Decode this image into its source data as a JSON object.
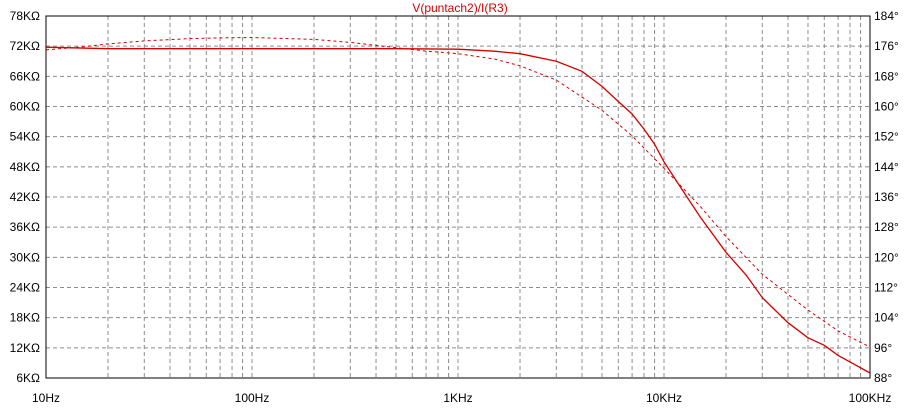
{
  "chart_data": {
    "type": "line",
    "title": "V(puntach2)/I(R3)",
    "xscale": "log",
    "xlim": [
      10,
      100000
    ],
    "x_tick_values": [
      10,
      100,
      1000,
      10000,
      100000
    ],
    "x_tick_labels": [
      "10Hz",
      "100Hz",
      "1KHz",
      "10KHz",
      "100KHz"
    ],
    "y_left": {
      "lim": [
        6,
        78
      ],
      "tick_values": [
        6,
        12,
        18,
        24,
        30,
        36,
        42,
        48,
        54,
        60,
        66,
        72,
        78
      ],
      "tick_labels": [
        "6KΩ",
        "12KΩ",
        "18KΩ",
        "24KΩ",
        "30KΩ",
        "36KΩ",
        "42KΩ",
        "48KΩ",
        "54KΩ",
        "60KΩ",
        "66KΩ",
        "72KΩ",
        "78KΩ"
      ]
    },
    "y_right": {
      "lim": [
        88,
        184
      ],
      "tick_values": [
        88,
        96,
        104,
        112,
        120,
        128,
        136,
        144,
        152,
        160,
        168,
        176,
        184
      ],
      "tick_labels": [
        "88°",
        "96°",
        "104°",
        "112°",
        "120°",
        "128°",
        "136°",
        "144°",
        "152°",
        "160°",
        "168°",
        "176°",
        "184°"
      ]
    },
    "grid": true,
    "color": "#d40000",
    "series": [
      {
        "axis": "left",
        "style": "solid",
        "x": [
          10,
          20,
          50,
          100,
          200,
          500,
          1000,
          1500,
          2000,
          3000,
          4000,
          5000,
          6000,
          7000,
          8000,
          9000,
          10000,
          12000,
          15000,
          20000,
          25000,
          30000,
          40000,
          50000,
          60000,
          70000,
          80000,
          100000
        ],
        "y": [
          71.8,
          71.5,
          71.5,
          71.5,
          71.5,
          71.5,
          71.4,
          71.0,
          70.5,
          69.0,
          67.0,
          64.0,
          61.0,
          58.5,
          55.5,
          52.5,
          49.0,
          44.0,
          38.0,
          31.0,
          26.5,
          22.0,
          17.0,
          14.0,
          12.5,
          10.5,
          9.2,
          7.0
        ]
      },
      {
        "axis": "right",
        "style": "dashed",
        "x": [
          10,
          15,
          20,
          30,
          50,
          70,
          100,
          200,
          300,
          500,
          700,
          1000,
          1500,
          2000,
          3000,
          5000,
          7000,
          10000,
          15000,
          20000,
          30000,
          50000,
          70000,
          100000
        ],
        "y": [
          175.0,
          175.8,
          176.6,
          177.4,
          178.0,
          178.2,
          178.3,
          177.8,
          177.0,
          175.6,
          174.7,
          174.0,
          172.6,
          170.8,
          167.0,
          159.0,
          152.2,
          143.6,
          133.5,
          125.5,
          115.5,
          106.0,
          100.5,
          96.2
        ]
      }
    ]
  }
}
